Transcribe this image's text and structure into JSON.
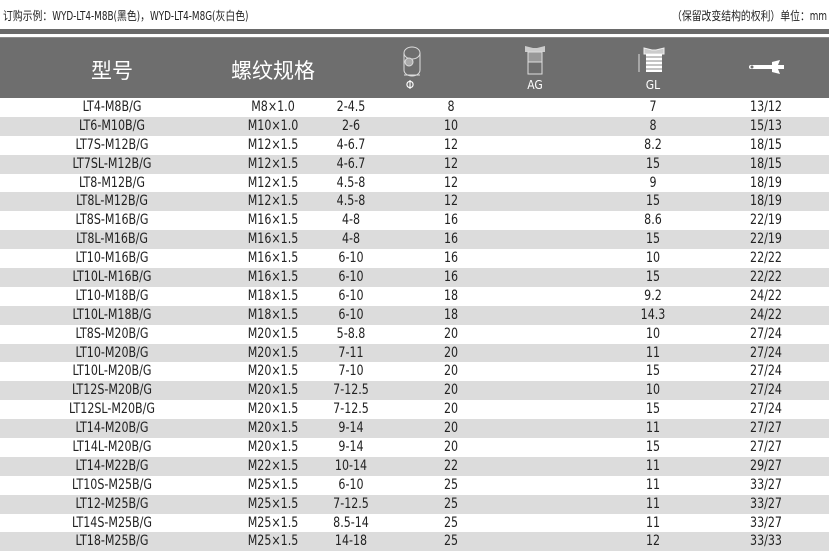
{
  "order_note": "订购示例：WYD-LT4-M8B(黑色)，WYD-LT4-M8G(灰白色)",
  "rights_note": "（保留改变结构的权利）单位：mm",
  "headers": {
    "model": "型号",
    "thread": "螺纹规格",
    "phi": "Φ",
    "ag": "AG",
    "gl": "GL",
    "wrench_icon": "wrench-icon"
  },
  "colors": {
    "header_bg": "#6e6e6e",
    "alt_row": "#dcdcdc"
  },
  "rows": [
    {
      "model": "LT4-M8B/G",
      "thread": "M8×1.0",
      "range": "2-4.5",
      "phi": "8",
      "gl": "7",
      "wrench": "13/12"
    },
    {
      "model": "LT6-M10B/G",
      "thread": "M10×1.0",
      "range": "2-6",
      "phi": "10",
      "gl": "8",
      "wrench": "15/13"
    },
    {
      "model": "LT7S-M12B/G",
      "thread": "M12×1.5",
      "range": "4-6.7",
      "phi": "12",
      "gl": "8.2",
      "wrench": "18/15"
    },
    {
      "model": "LT7SL-M12B/G",
      "thread": "M12×1.5",
      "range": "4-6.7",
      "phi": "12",
      "gl": "15",
      "wrench": "18/15"
    },
    {
      "model": "LT8-M12B/G",
      "thread": "M12×1.5",
      "range": "4.5-8",
      "phi": "12",
      "gl": "9",
      "wrench": "18/19"
    },
    {
      "model": "LT8L-M12B/G",
      "thread": "M12×1.5",
      "range": "4.5-8",
      "phi": "12",
      "gl": "15",
      "wrench": "18/19"
    },
    {
      "model": "LT8S-M16B/G",
      "thread": "M16×1.5",
      "range": "4-8",
      "phi": "16",
      "gl": "8.6",
      "wrench": "22/19"
    },
    {
      "model": "LT8L-M16B/G",
      "thread": "M16×1.5",
      "range": "4-8",
      "phi": "16",
      "gl": "15",
      "wrench": "22/19"
    },
    {
      "model": "LT10-M16B/G",
      "thread": "M16×1.5",
      "range": "6-10",
      "phi": "16",
      "gl": "10",
      "wrench": "22/22"
    },
    {
      "model": "LT10L-M16B/G",
      "thread": "M16×1.5",
      "range": "6-10",
      "phi": "16",
      "gl": "15",
      "wrench": "22/22"
    },
    {
      "model": "LT10-M18B/G",
      "thread": "M18×1.5",
      "range": "6-10",
      "phi": "18",
      "gl": "9.2",
      "wrench": "24/22"
    },
    {
      "model": "LT10L-M18B/G",
      "thread": "M18×1.5",
      "range": "6-10",
      "phi": "18",
      "gl": "14.3",
      "wrench": "24/22"
    },
    {
      "model": "LT8S-M20B/G",
      "thread": "M20×1.5",
      "range": "5-8.8",
      "phi": "20",
      "gl": "10",
      "wrench": "27/24"
    },
    {
      "model": "LT10-M20B/G",
      "thread": "M20×1.5",
      "range": "7-11",
      "phi": "20",
      "gl": "11",
      "wrench": "27/24"
    },
    {
      "model": "LT10L-M20B/G",
      "thread": "M20×1.5",
      "range": "7-10",
      "phi": "20",
      "gl": "15",
      "wrench": "27/24"
    },
    {
      "model": "LT12S-M20B/G",
      "thread": "M20×1.5",
      "range": "7-12.5",
      "phi": "20",
      "gl": "10",
      "wrench": "27/24"
    },
    {
      "model": "LT12SL-M20B/G",
      "thread": "M20×1.5",
      "range": "7-12.5",
      "phi": "20",
      "gl": "15",
      "wrench": "27/24"
    },
    {
      "model": "LT14-M20B/G",
      "thread": "M20×1.5",
      "range": "9-14",
      "phi": "20",
      "gl": "11",
      "wrench": "27/27"
    },
    {
      "model": "LT14L-M20B/G",
      "thread": "M20×1.5",
      "range": "9-14",
      "phi": "20",
      "gl": "15",
      "wrench": "27/27"
    },
    {
      "model": "LT14-M22B/G",
      "thread": "M22×1.5",
      "range": "10-14",
      "phi": "22",
      "gl": "11",
      "wrench": "29/27"
    },
    {
      "model": "LT10S-M25B/G",
      "thread": "M25×1.5",
      "range": "6-10",
      "phi": "25",
      "gl": "11",
      "wrench": "33/27"
    },
    {
      "model": "LT12-M25B/G",
      "thread": "M25×1.5",
      "range": "7-12.5",
      "phi": "25",
      "gl": "11",
      "wrench": "33/27"
    },
    {
      "model": "LT14S-M25B/G",
      "thread": "M25×1.5",
      "range": "8.5-14",
      "phi": "25",
      "gl": "11",
      "wrench": "33/27"
    },
    {
      "model": "LT18-M25B/G",
      "thread": "M25×1.5",
      "range": "14-18",
      "phi": "25",
      "gl": "12",
      "wrench": "33/33"
    }
  ]
}
